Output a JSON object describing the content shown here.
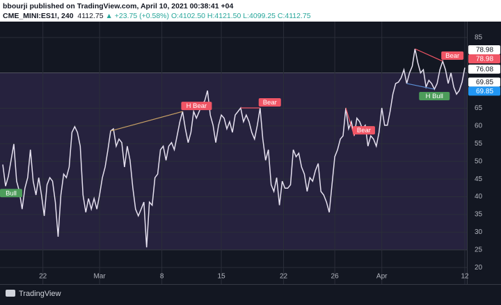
{
  "header": {
    "author_line": "bbourji published on TradingView.com, April 10, 2021 00:38:41 +04",
    "symbol": "CME_MINI:ES1!, 240",
    "price": "4112.75",
    "change": "▲ +23.75 (+0.58%)",
    "ohlc": "O:4102.50 H:4121.50 L:4099.25 C:4112.75"
  },
  "chart_data": {
    "type": "line",
    "x": [
      1,
      2,
      3,
      4,
      5,
      6,
      7,
      8,
      9,
      10,
      11,
      12,
      13,
      14,
      15,
      16,
      17,
      18,
      19,
      20,
      21,
      22,
      23,
      24,
      25,
      26,
      27,
      28,
      29,
      30,
      31,
      32,
      33,
      34,
      35,
      36,
      37,
      38,
      39,
      40,
      41,
      42,
      43,
      44,
      45,
      46,
      47,
      48,
      49,
      50,
      51,
      52,
      53,
      54,
      55,
      56,
      57,
      58,
      59,
      60,
      61,
      62,
      63,
      64,
      65,
      66,
      67,
      68,
      69,
      70,
      71,
      72,
      73,
      74,
      75,
      76,
      77,
      78,
      79,
      80,
      81,
      82,
      83,
      84,
      85,
      86,
      87,
      88,
      89,
      90,
      91,
      92,
      93,
      94,
      95,
      96,
      97,
      98,
      99,
      100,
      101,
      102,
      103,
      104,
      105,
      106,
      107,
      108,
      109,
      110,
      111,
      112,
      113,
      114,
      115,
      116,
      117,
      118,
      119,
      120,
      121,
      122,
      123,
      124,
      125,
      126,
      127,
      128,
      129,
      130,
      131,
      132,
      133,
      134,
      135,
      136,
      137,
      138,
      139,
      140,
      141,
      142,
      143,
      144,
      145,
      146,
      147,
      148,
      149,
      150,
      151,
      152,
      153,
      154,
      155,
      156,
      157,
      158,
      159,
      160,
      161,
      162,
      163,
      164,
      165,
      166,
      167,
      168
    ],
    "series": [
      {
        "color": "#e6e1f0",
        "values": [
          49.1,
          43,
          45.7,
          50.3,
          54.9,
          44.4,
          41.5,
          36.5,
          42.4,
          45.4,
          53.3,
          44.4,
          40.5,
          45.4,
          40.5,
          34.6,
          43.4,
          45.4,
          44.4,
          38.5,
          28.7,
          40.5,
          46.4,
          45.4,
          48.4,
          58.2,
          59.8,
          58.2,
          54.3,
          40.5,
          35.6,
          39.5,
          36.5,
          39.5,
          36.5,
          40.5,
          45.4,
          48.4,
          53.3,
          58.6,
          59.2,
          54.3,
          56.3,
          55.3,
          48.4,
          54.3,
          50.3,
          42.5,
          36.5,
          34.6,
          36.5,
          38.5,
          25.7,
          38.5,
          37.6,
          45.4,
          46.4,
          53.3,
          54.3,
          50.3,
          54.3,
          55.3,
          53.3,
          57.2,
          61.2,
          64.1,
          59.2,
          55.3,
          58.2,
          64.1,
          62.2,
          64.1,
          66.1,
          67.1,
          70.0,
          63.1,
          60.2,
          55.3,
          60.2,
          63.1,
          62.2,
          59.2,
          61.2,
          58.2,
          63.1,
          64.1,
          65.1,
          61.2,
          63.1,
          61.2,
          58.2,
          56.3,
          60.2,
          65.1,
          56.3,
          50.3,
          53.3,
          43.4,
          41.5,
          45.4,
          37.6,
          44.4,
          42.4,
          42.4,
          43.4,
          53.3,
          51.3,
          52.3,
          48.4,
          46.4,
          41.5,
          45.4,
          44.4,
          47.4,
          49.4,
          41.5,
          40.5,
          38.5,
          35.6,
          43.4,
          51.3,
          53.3,
          56.3,
          57.2,
          65.1,
          59.2,
          61.2,
          57.2,
          62.2,
          61.2,
          59.2,
          60.2,
          54.3,
          57.2,
          56.3,
          54.3,
          58.2,
          65.1,
          60.2,
          60.2,
          64.1,
          69.0,
          72.0,
          72.4,
          73.6,
          75.9,
          72.0,
          75.0,
          76.9,
          81.8,
          77.9,
          75.0,
          75.9,
          71.0,
          72.9,
          72.0,
          70.4,
          72.0,
          75.9,
          78.3,
          75.9,
          72.0,
          75.0,
          71.0,
          69.0,
          70.0,
          72.4,
          76.5
        ]
      }
    ],
    "xlim": [
      0,
      168
    ],
    "xticks": [
      {
        "value": 15.5,
        "label": "22"
      },
      {
        "value": 36,
        "label": "Mar"
      },
      {
        "value": 58.5,
        "label": "8"
      },
      {
        "value": 80,
        "label": "15"
      },
      {
        "value": 102.5,
        "label": "22"
      },
      {
        "value": 121,
        "label": "26"
      },
      {
        "value": 138,
        "label": "Apr"
      },
      {
        "value": 168,
        "label": "12"
      }
    ],
    "ylim": [
      15.9,
      89.5
    ],
    "yticks": [
      20,
      25,
      30,
      35,
      40,
      45,
      50,
      55,
      60,
      65,
      85
    ],
    "band": [
      25,
      75
    ],
    "band_color": "#7e57c2",
    "price_labels": [
      {
        "value": 78.98,
        "bg": "#ffffff",
        "fg": "#131722"
      },
      {
        "value": 78.98,
        "bg": "#f05565",
        "fg": "#ffffff"
      },
      {
        "value": 76.08,
        "bg": "#ffffff",
        "fg": "#131722"
      },
      {
        "value": 69.85,
        "bg": "#ffffff",
        "fg": "#131722"
      },
      {
        "value": 69.85,
        "bg": "#2196f3",
        "fg": "#ffffff"
      }
    ],
    "annotations": [
      {
        "text": "H Bear",
        "x": [
          40,
          66
        ],
        "line_color": "#c8a165",
        "label_color": "#f05565"
      },
      {
        "text": "Bear",
        "x": [
          87,
          94
        ],
        "line_color": "#f05565",
        "label_color": "#f05565"
      },
      {
        "text": "Bear",
        "x": [
          125,
          128
        ],
        "line_color": "#f05565",
        "label_color": "#f05565"
      },
      {
        "text": "Bear",
        "x": [
          150,
          160
        ],
        "line_color": "#f05565",
        "label_color": "#f05565"
      },
      {
        "text": "H Bull",
        "x": [
          147,
          157
        ],
        "line_color": "#5b8fd6",
        "label_color": "#4c9c5a"
      },
      {
        "text": "Bull",
        "x": [
          2
        ],
        "line_color": "#4c9c5a",
        "label_color": "#4c9c5a"
      }
    ]
  },
  "footer": {
    "brand": "TradingView"
  }
}
